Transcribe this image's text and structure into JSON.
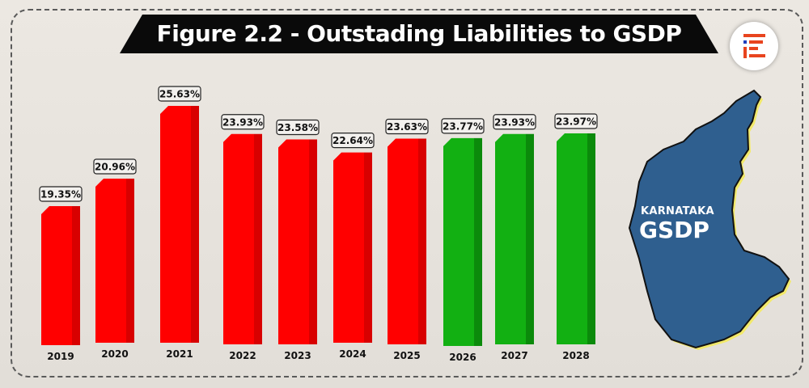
{
  "title": "Figure 2.2 - Outstading Liabilities to GSDP",
  "map": {
    "line1": "KARNATAKA",
    "line2": "GSDP",
    "fill_color": "#2f5f8f"
  },
  "logo": {
    "icon": "ie-logo-icon",
    "colors": [
      "#e8441e",
      "#1f3fbf"
    ]
  },
  "colors": {
    "actual": "#ff0000",
    "projected": "#12b012"
  },
  "chart_data": {
    "type": "bar",
    "title": "Figure 2.2 - Outstading Liabilities to GSDP",
    "xlabel": "",
    "ylabel": "",
    "categories": [
      "2019",
      "2020",
      "2021",
      "2022",
      "2023",
      "2024",
      "2025",
      "2026",
      "2027",
      "2028"
    ],
    "values": [
      19.35,
      20.96,
      25.63,
      23.93,
      23.58,
      22.64,
      23.63,
      23.77,
      23.93,
      23.97
    ],
    "labels": [
      "19.35%",
      "20.96%",
      "25.63%",
      "23.93%",
      "23.58%",
      "22.64%",
      "23.63%",
      "23.77%",
      "23.93%",
      "23.97%"
    ],
    "series_type": [
      "actual",
      "actual",
      "actual",
      "actual",
      "actual",
      "actual",
      "actual",
      "projected",
      "projected",
      "projected"
    ],
    "unit": "%",
    "grid": false,
    "legend": "none"
  }
}
